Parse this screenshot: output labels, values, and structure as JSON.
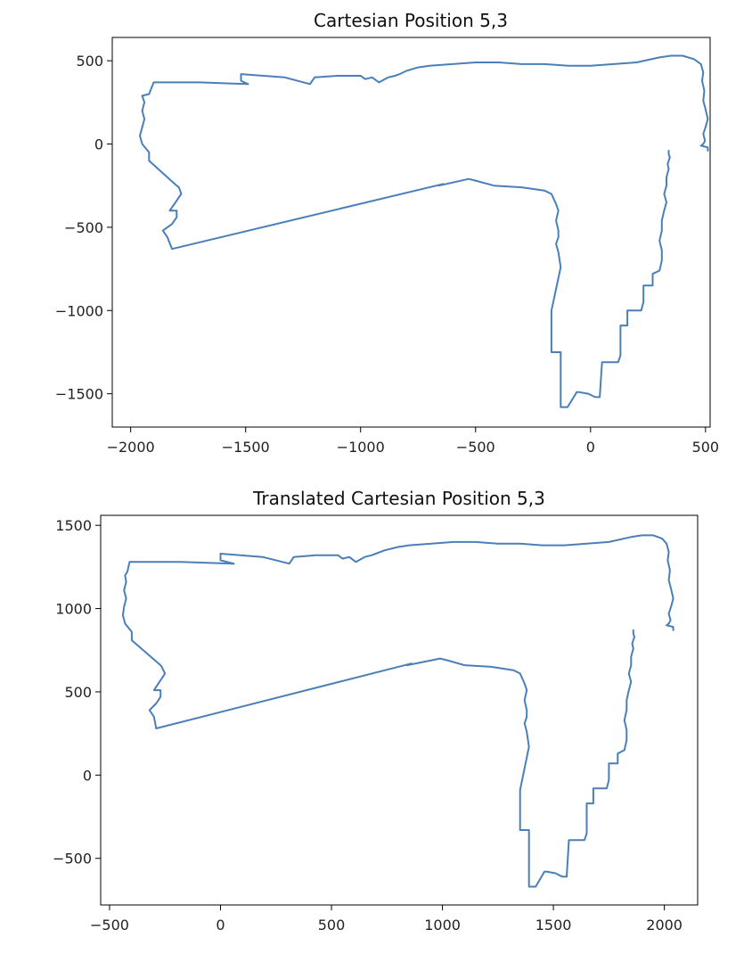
{
  "chart_data": [
    {
      "type": "line",
      "title": "Cartesian Position 5,3",
      "xlabel": "",
      "ylabel": "",
      "xlim": [
        -2080,
        520
      ],
      "ylim": [
        -1700,
        640
      ],
      "xticks": [
        -2000,
        -1500,
        -1000,
        -500,
        0,
        500
      ],
      "yticks": [
        500,
        0,
        -500,
        -1000,
        -1500
      ],
      "xtick_labels": [
        "−2000",
        "−1500",
        "−1000",
        "−500",
        "0",
        "500"
      ],
      "ytick_labels": [
        "500",
        "0",
        "−500",
        "−1000",
        "−1500"
      ],
      "grid": false,
      "color": "#4a7fb8",
      "series": [
        {
          "x": [
            -1490,
            -1520,
            -1520,
            -1330,
            -1220,
            -1200,
            -1100,
            -1000,
            -980,
            -950,
            -920,
            -880,
            -850,
            -830,
            -800,
            -750,
            -700,
            -600,
            -500,
            -400,
            -300,
            -200,
            -100,
            0,
            100,
            200,
            300,
            350,
            400,
            450,
            480,
            490,
            485,
            495,
            490,
            500,
            510,
            500,
            490,
            498,
            490,
            480,
            510,
            510
          ],
          "y": [
            360,
            380,
            420,
            400,
            360,
            400,
            410,
            410,
            390,
            400,
            370,
            400,
            410,
            420,
            440,
            460,
            470,
            480,
            490,
            490,
            480,
            480,
            470,
            470,
            480,
            490,
            520,
            530,
            530,
            510,
            480,
            430,
            380,
            320,
            260,
            210,
            150,
            100,
            60,
            20,
            0,
            -10,
            -20,
            -40
          ],
          "y_comment": ""
        },
        {
          "x": [
            -1490,
            -1700,
            -1900,
            -1920,
            -1950,
            -1940,
            -1950,
            -1940,
            -1950,
            -1960,
            -1950,
            -1920,
            -1920,
            -1800,
            -1790,
            -1780,
            -1810,
            -1830,
            -1800,
            -1800,
            -1820,
            -1860,
            -1840,
            -1820,
            -640,
            -660,
            -530,
            -500,
            -420,
            -300,
            -200,
            -170,
            -150,
            -140,
            -150,
            -140,
            -140,
            -150,
            -140,
            -130,
            -170,
            -170,
            -130,
            -130,
            -100,
            -60,
            -50,
            -10,
            20,
            40,
            50,
            120,
            130,
            130,
            160,
            160,
            220,
            230,
            230,
            270,
            270,
            300,
            310,
            310,
            300,
            310,
            310,
            320,
            330,
            320,
            330,
            330,
            340,
            335,
            345,
            340,
            340
          ],
          "y": [
            360,
            370,
            370,
            300,
            290,
            250,
            200,
            150,
            100,
            50,
            0,
            -50,
            -100,
            -250,
            -260,
            -300,
            -360,
            -400,
            -400,
            -440,
            -480,
            -520,
            -560,
            -630,
            -240,
            -250,
            -210,
            -220,
            -250,
            -260,
            -280,
            -300,
            -360,
            -400,
            -460,
            -520,
            -560,
            -600,
            -650,
            -740,
            -1000,
            -1250,
            -1250,
            -1580,
            -1580,
            -1490,
            -1490,
            -1500,
            -1520,
            -1520,
            -1310,
            -1310,
            -1270,
            -1090,
            -1090,
            -1000,
            -1000,
            -950,
            -850,
            -850,
            -780,
            -760,
            -700,
            -640,
            -580,
            -520,
            -460,
            -400,
            -350,
            -300,
            -250,
            -200,
            -150,
            -120,
            -80,
            -60,
            -40
          ]
        }
      ]
    },
    {
      "type": "line",
      "title": "Translated Cartesian Position 5,3",
      "xlabel": "",
      "ylabel": "",
      "xlim": [
        -540,
        2150
      ],
      "ylim": [
        -780,
        1560
      ],
      "xticks": [
        -500,
        0,
        500,
        1000,
        1500,
        2000
      ],
      "yticks": [
        1500,
        1000,
        500,
        0,
        -500
      ],
      "xtick_labels": [
        "−500",
        "0",
        "500",
        "1000",
        "1500",
        "2000"
      ],
      "ytick_labels": [
        "1500",
        "1000",
        "500",
        "0",
        "−500"
      ],
      "grid": false,
      "color": "#4a7fb8",
      "series": [
        {
          "x": [
            60,
            0,
            0,
            190,
            310,
            330,
            430,
            530,
            550,
            580,
            610,
            650,
            680,
            700,
            740,
            800,
            850,
            950,
            1050,
            1150,
            1250,
            1350,
            1450,
            1550,
            1650,
            1750,
            1850,
            1900,
            1950,
            1990,
            2010,
            2020,
            2015,
            2025,
            2020,
            2030,
            2040,
            2030,
            2020,
            2028,
            2020,
            2010,
            2040,
            2040
          ],
          "y": [
            1270,
            1290,
            1330,
            1310,
            1270,
            1310,
            1320,
            1320,
            1300,
            1310,
            1280,
            1310,
            1320,
            1330,
            1350,
            1370,
            1380,
            1390,
            1400,
            1400,
            1390,
            1390,
            1380,
            1380,
            1390,
            1400,
            1430,
            1440,
            1440,
            1420,
            1390,
            1340,
            1290,
            1230,
            1170,
            1120,
            1060,
            1010,
            970,
            930,
            910,
            900,
            890,
            870
          ]
        },
        {
          "x": [
            60,
            -180,
            -410,
            -420,
            -430,
            -425,
            -435,
            -425,
            -435,
            -440,
            -430,
            -400,
            -400,
            -270,
            -265,
            -250,
            -280,
            -300,
            -270,
            -270,
            -290,
            -320,
            -300,
            -290,
            860,
            840,
            990,
            1020,
            1100,
            1220,
            1320,
            1350,
            1370,
            1380,
            1370,
            1380,
            1380,
            1370,
            1380,
            1390,
            1350,
            1350,
            1390,
            1390,
            1420,
            1460,
            1470,
            1510,
            1540,
            1560,
            1570,
            1640,
            1650,
            1650,
            1680,
            1680,
            1740,
            1750,
            1750,
            1790,
            1790,
            1820,
            1830,
            1830,
            1820,
            1830,
            1830,
            1840,
            1850,
            1840,
            1850,
            1850,
            1860,
            1855,
            1865,
            1860,
            1860
          ],
          "y": [
            1270,
            1280,
            1280,
            1220,
            1200,
            1160,
            1110,
            1060,
            1010,
            960,
            910,
            860,
            810,
            660,
            650,
            610,
            550,
            510,
            510,
            470,
            430,
            390,
            350,
            280,
            670,
            660,
            700,
            690,
            660,
            650,
            630,
            610,
            550,
            510,
            450,
            390,
            350,
            310,
            260,
            170,
            -90,
            -330,
            -330,
            -670,
            -670,
            -580,
            -580,
            -590,
            -610,
            -610,
            -390,
            -390,
            -350,
            -170,
            -170,
            -80,
            -80,
            -30,
            70,
            70,
            130,
            150,
            210,
            270,
            330,
            390,
            450,
            510,
            560,
            610,
            660,
            710,
            760,
            790,
            830,
            850,
            870
          ]
        }
      ]
    }
  ]
}
